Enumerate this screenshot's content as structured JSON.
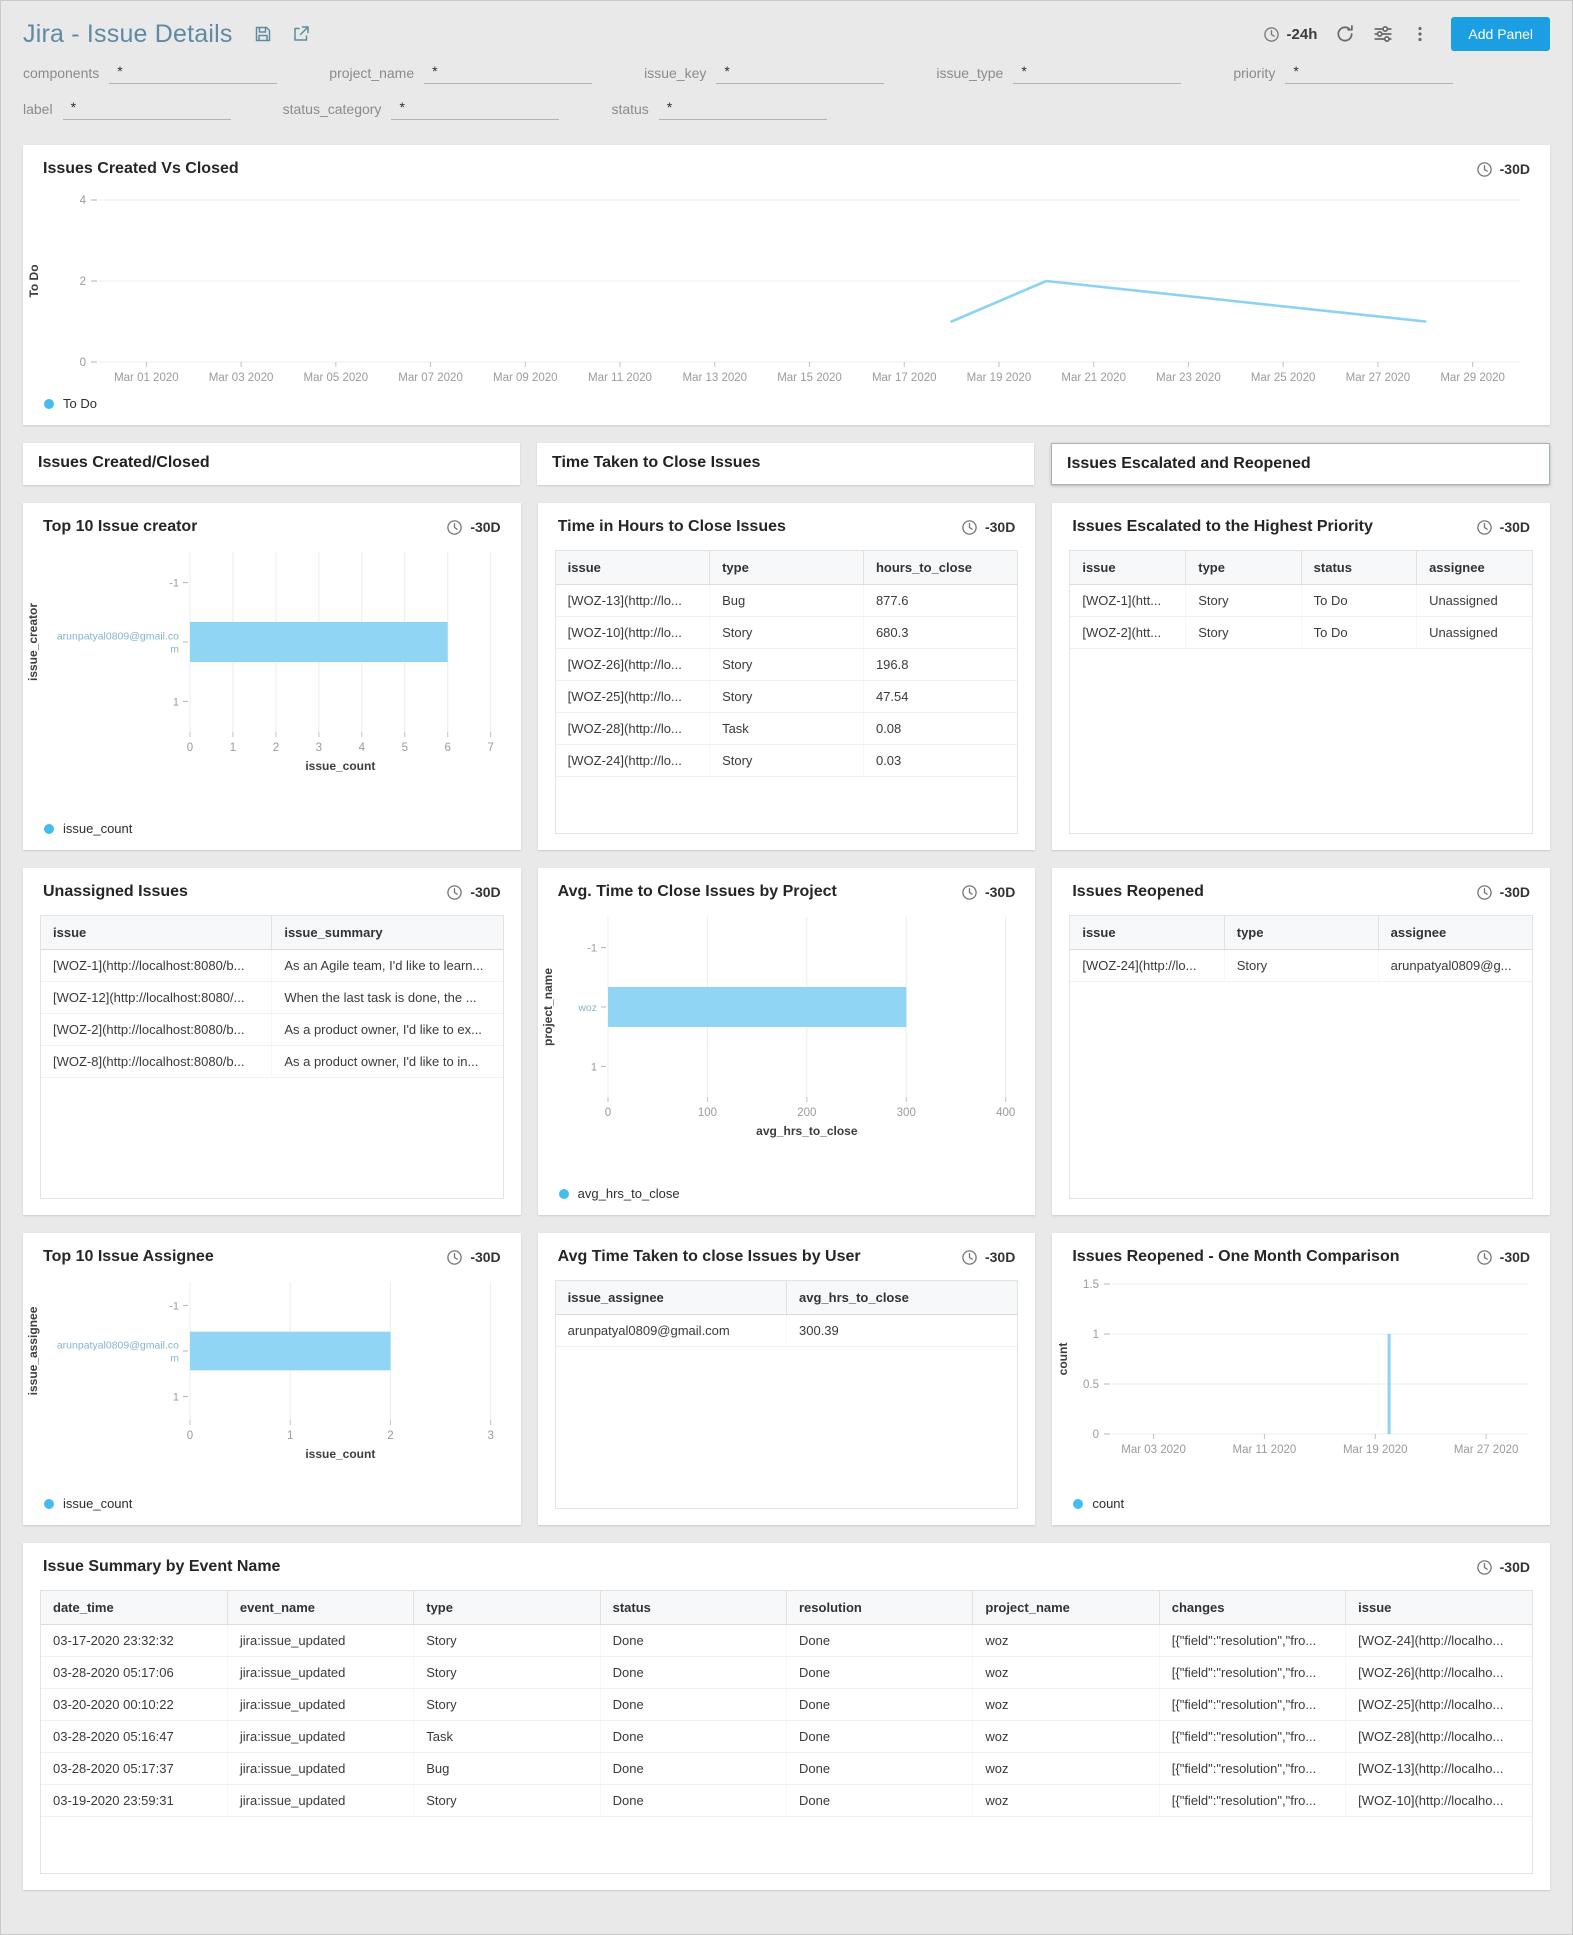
{
  "header": {
    "title": "Jira - Issue Details",
    "time_range": "-24h",
    "add_panel": "Add Panel"
  },
  "filters": [
    {
      "label": "components",
      "value": "*"
    },
    {
      "label": "project_name",
      "value": "*"
    },
    {
      "label": "issue_key",
      "value": "*"
    },
    {
      "label": "issue_type",
      "value": "*"
    },
    {
      "label": "priority",
      "value": "*"
    },
    {
      "label": "label",
      "value": "*"
    },
    {
      "label": "status_category",
      "value": "*"
    },
    {
      "label": "status",
      "value": "*"
    }
  ],
  "section_headers": [
    "Issues Created/Closed",
    "Time Taken to Close Issues",
    "Issues Escalated and Reopened"
  ],
  "panels": {
    "created_vs_closed": {
      "title": "Issues Created Vs Closed",
      "range": "-30D",
      "legend": "To Do"
    },
    "top_creator": {
      "title": "Top 10 Issue creator",
      "range": "-30D",
      "legend": "issue_count"
    },
    "time_to_close": {
      "title": "Time in Hours to Close Issues",
      "range": "-30D",
      "table": {
        "columns": [
          "issue",
          "type",
          "hours_to_close"
        ],
        "rows": [
          [
            "[WOZ-13](http://lo...",
            "Bug",
            "877.6"
          ],
          [
            "[WOZ-10](http://lo...",
            "Story",
            "680.3"
          ],
          [
            "[WOZ-26](http://lo...",
            "Story",
            "196.8"
          ],
          [
            "[WOZ-25](http://lo...",
            "Story",
            "47.54"
          ],
          [
            "[WOZ-28](http://lo...",
            "Task",
            "0.08"
          ],
          [
            "[WOZ-24](http://lo...",
            "Story",
            "0.03"
          ]
        ]
      }
    },
    "escalated": {
      "title": "Issues Escalated to the Highest Priority",
      "range": "-30D",
      "table": {
        "columns": [
          "issue",
          "type",
          "status",
          "assignee"
        ],
        "rows": [
          [
            "[WOZ-1](htt...",
            "Story",
            "To Do",
            "Unassigned"
          ],
          [
            "[WOZ-2](htt...",
            "Story",
            "To Do",
            "Unassigned"
          ]
        ]
      }
    },
    "unassigned": {
      "title": "Unassigned Issues",
      "range": "-30D",
      "table": {
        "columns": [
          "issue",
          "issue_summary"
        ],
        "rows": [
          [
            "[WOZ-1](http://localhost:8080/b...",
            "As an Agile team, I'd like to learn..."
          ],
          [
            "[WOZ-12](http://localhost:8080/...",
            "When the last task is done, the ..."
          ],
          [
            "[WOZ-2](http://localhost:8080/b...",
            "As a product owner, I'd like to ex..."
          ],
          [
            "[WOZ-8](http://localhost:8080/b...",
            "As a product owner, I'd like to in..."
          ]
        ]
      }
    },
    "avg_close_project": {
      "title": "Avg. Time to Close Issues by Project",
      "range": "-30D",
      "legend": "avg_hrs_to_close"
    },
    "reopened": {
      "title": "Issues Reopened",
      "range": "-30D",
      "table": {
        "columns": [
          "issue",
          "type",
          "assignee"
        ],
        "rows": [
          [
            "[WOZ-24](http://lo...",
            "Story",
            "arunpatyal0809@g..."
          ]
        ]
      }
    },
    "top_assignee": {
      "title": "Top 10 Issue Assignee",
      "range": "-30D",
      "legend": "issue_count"
    },
    "avg_close_user": {
      "title": "Avg Time Taken to close Issues by User",
      "range": "-30D",
      "table": {
        "columns": [
          "issue_assignee",
          "avg_hrs_to_close"
        ],
        "rows": [
          [
            "arunpatyal0809@gmail.com",
            "300.39"
          ]
        ]
      }
    },
    "reopened_comparison": {
      "title": "Issues Reopened - One Month Comparison",
      "range": "-30D",
      "legend": "count"
    },
    "issue_summary": {
      "title": "Issue Summary by Event Name",
      "range": "-30D",
      "table": {
        "columns": [
          "date_time",
          "event_name",
          "type",
          "status",
          "resolution",
          "project_name",
          "changes",
          "issue"
        ],
        "rows": [
          [
            "03-17-2020 23:32:32",
            "jira:issue_updated",
            "Story",
            "Done",
            "Done",
            "woz",
            "[{\"field\":\"resolution\",\"fro...",
            "[WOZ-24](http://localho..."
          ],
          [
            "03-28-2020 05:17:06",
            "jira:issue_updated",
            "Story",
            "Done",
            "Done",
            "woz",
            "[{\"field\":\"resolution\",\"fro...",
            "[WOZ-26](http://localho..."
          ],
          [
            "03-20-2020 00:10:22",
            "jira:issue_updated",
            "Story",
            "Done",
            "Done",
            "woz",
            "[{\"field\":\"resolution\",\"fro...",
            "[WOZ-25](http://localho..."
          ],
          [
            "03-28-2020 05:16:47",
            "jira:issue_updated",
            "Task",
            "Done",
            "Done",
            "woz",
            "[{\"field\":\"resolution\",\"fro...",
            "[WOZ-28](http://localho..."
          ],
          [
            "03-28-2020 05:17:37",
            "jira:issue_updated",
            "Bug",
            "Done",
            "Done",
            "woz",
            "[{\"field\":\"resolution\",\"fro...",
            "[WOZ-13](http://localho..."
          ],
          [
            "03-19-2020 23:59:31",
            "jira:issue_updated",
            "Story",
            "Done",
            "Done",
            "woz",
            "[{\"field\":\"resolution\",\"fro...",
            "[WOZ-10](http://localho..."
          ]
        ]
      }
    }
  },
  "chart_data": [
    {
      "id": "created_vs_closed",
      "type": "line",
      "title": "Issues Created Vs Closed",
      "ylabel": "To Do",
      "ylim": [
        0,
        4
      ],
      "y_ticks": [
        0,
        2,
        4
      ],
      "x_ticks": [
        "Mar 01 2020",
        "Mar 03 2020",
        "Mar 05 2020",
        "Mar 07 2020",
        "Mar 09 2020",
        "Mar 11 2020",
        "Mar 13 2020",
        "Mar 15 2020",
        "Mar 17 2020",
        "Mar 19 2020",
        "Mar 21 2020",
        "Mar 23 2020",
        "Mar 25 2020",
        "Mar 27 2020",
        "Mar 29 2020"
      ],
      "series": [
        {
          "name": "To Do",
          "points": [
            [
              "Mar 18 2020",
              1
            ],
            [
              "Mar 20 2020",
              2
            ],
            [
              "Mar 28 2020",
              1
            ]
          ]
        }
      ],
      "legend_position": "bottom-left",
      "grid": true
    },
    {
      "id": "top_creator",
      "type": "hbar",
      "title": "Top 10 Issue creator",
      "ylabel": "issue_creator",
      "xlabel": "issue_count",
      "categories": [
        "arunpatyal0809@gmail.com"
      ],
      "values": [
        6
      ],
      "xlim": [
        0,
        7
      ],
      "x_ticks": [
        0,
        1,
        2,
        3,
        4,
        5,
        6,
        7
      ],
      "y_edge_ticks": [
        "-1",
        "1"
      ],
      "legend_position": "bottom-left",
      "grid": true
    },
    {
      "id": "avg_close_project",
      "type": "hbar",
      "title": "Avg. Time to Close Issues by Project",
      "ylabel": "project_name",
      "xlabel": "avg_hrs_to_close",
      "categories": [
        "woz"
      ],
      "values": [
        300
      ],
      "xlim": [
        0,
        400
      ],
      "x_ticks": [
        0,
        100,
        200,
        300,
        400
      ],
      "y_edge_ticks": [
        "-1",
        "1"
      ],
      "legend_position": "bottom-left",
      "grid": true
    },
    {
      "id": "top_assignee",
      "type": "hbar",
      "title": "Top 10 Issue Assignee",
      "ylabel": "issue_assignee",
      "xlabel": "issue_count",
      "categories": [
        "arunpatyal0809@gmail.com"
      ],
      "values": [
        2
      ],
      "xlim": [
        0,
        3
      ],
      "x_ticks": [
        0,
        1,
        2,
        3
      ],
      "y_edge_ticks": [
        "-1",
        "1"
      ],
      "legend_position": "bottom-left",
      "grid": true
    },
    {
      "id": "reopened_comparison",
      "type": "spike",
      "title": "Issues Reopened - One Month Comparison",
      "ylabel": "count",
      "ylim": [
        0,
        1.5
      ],
      "y_ticks": [
        0,
        0.5,
        1,
        1.5
      ],
      "x_ticks": [
        "Mar 03 2020",
        "Mar 11 2020",
        "Mar 19 2020",
        "Mar 27 2020"
      ],
      "spike": {
        "x": "Mar 20 2020",
        "value": 1
      },
      "legend_position": "bottom-left",
      "grid": true
    }
  ],
  "colors": {
    "title": "#5f8aa3",
    "accent": "#1c9ee3",
    "bar": "#90d5f4",
    "line": "#8ed2f2",
    "dot": "#45bdec"
  }
}
